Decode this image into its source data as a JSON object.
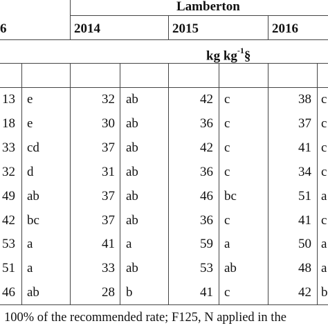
{
  "header": {
    "site": "Lamberton",
    "prev_year_fragment": "6",
    "years": [
      "2014",
      "2015",
      "2016"
    ]
  },
  "units": {
    "label": "kg kg",
    "superscript": "-1",
    "mark": "§"
  },
  "rows": [
    {
      "c0": "13",
      "l0": "e",
      "v14": "32",
      "l14": "ab",
      "v15": "42",
      "l15": "c",
      "v16": "38",
      "l16": "c"
    },
    {
      "c0": "18",
      "l0": "e",
      "v14": "30",
      "l14": "ab",
      "v15": "36",
      "l15": "c",
      "v16": "37",
      "l16": "c"
    },
    {
      "c0": "33",
      "l0": "cd",
      "v14": "37",
      "l14": "ab",
      "v15": "42",
      "l15": "c",
      "v16": "41",
      "l16": "c"
    },
    {
      "c0": "32",
      "l0": "d",
      "v14": "31",
      "l14": "ab",
      "v15": "36",
      "l15": "c",
      "v16": "34",
      "l16": "c"
    },
    {
      "c0": "49",
      "l0": "ab",
      "v14": "37",
      "l14": "ab",
      "v15": "46",
      "l15": "bc",
      "v16": "51",
      "l16": "a"
    },
    {
      "c0": "42",
      "l0": "bc",
      "v14": "37",
      "l14": "ab",
      "v15": "36",
      "l15": "c",
      "v16": "41",
      "l16": "c"
    },
    {
      "c0": "53",
      "l0": "a",
      "v14": "41",
      "l14": "a",
      "v15": "59",
      "l15": "a",
      "v16": "50",
      "l16": "a"
    },
    {
      "c0": "51",
      "l0": "a",
      "v14": "33",
      "l14": "ab",
      "v15": "53",
      "l15": "ab",
      "v16": "48",
      "l16": "a"
    },
    {
      "c0": "46",
      "l0": "ab",
      "v14": "28",
      "l14": "b",
      "v15": "41",
      "l15": "c",
      "v16": "42",
      "l16": "b"
    }
  ],
  "footnote": "100% of the recommended rate; F125, N applied in the"
}
